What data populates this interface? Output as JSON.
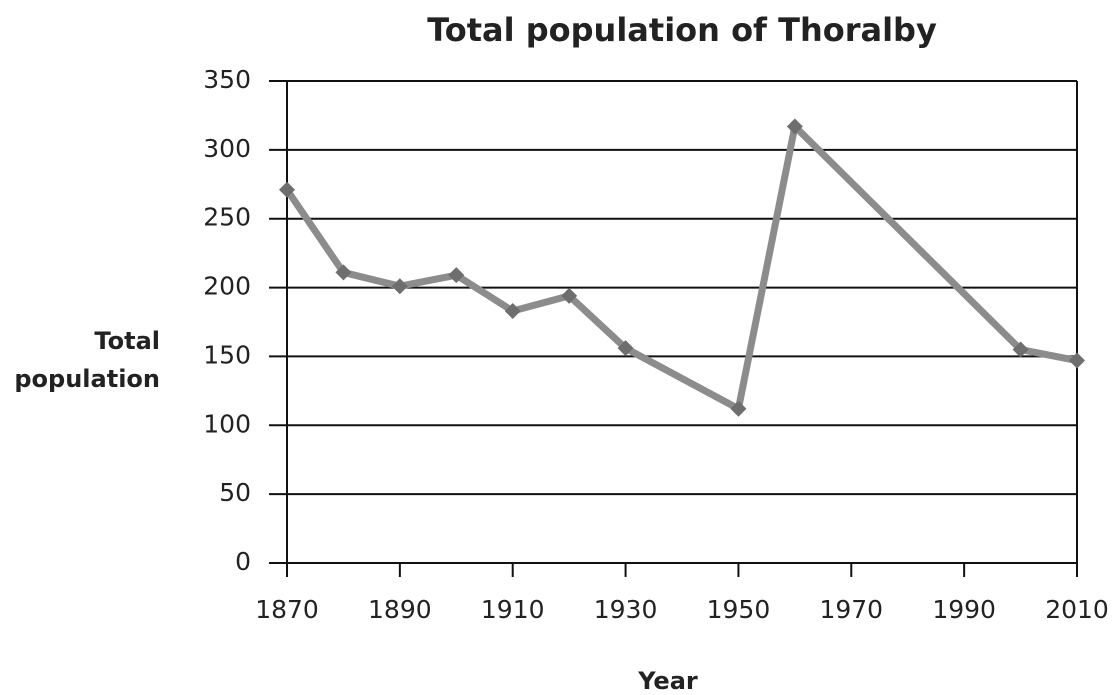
{
  "chart_data": {
    "type": "line",
    "title": "Total population of Thoralby",
    "x_label": "Year",
    "y_label": "Total population",
    "x": [
      1870,
      1880,
      1890,
      1900,
      1910,
      1920,
      1930,
      1950,
      1960,
      2000,
      2010
    ],
    "series": [
      {
        "name": "Total population",
        "color": "#8c8c8c",
        "marker_color": "#6e6e6e",
        "values": [
          271,
          211,
          201,
          209,
          183,
          194,
          156,
          112,
          317,
          155,
          147
        ]
      }
    ],
    "xlim": [
      1870,
      2010
    ],
    "xticks": [
      1870,
      1890,
      1910,
      1930,
      1950,
      1970,
      1990,
      2010
    ],
    "ylim": [
      0,
      350
    ],
    "yticks": [
      0,
      50,
      100,
      150,
      200,
      250,
      300,
      350
    ],
    "grid": true
  }
}
